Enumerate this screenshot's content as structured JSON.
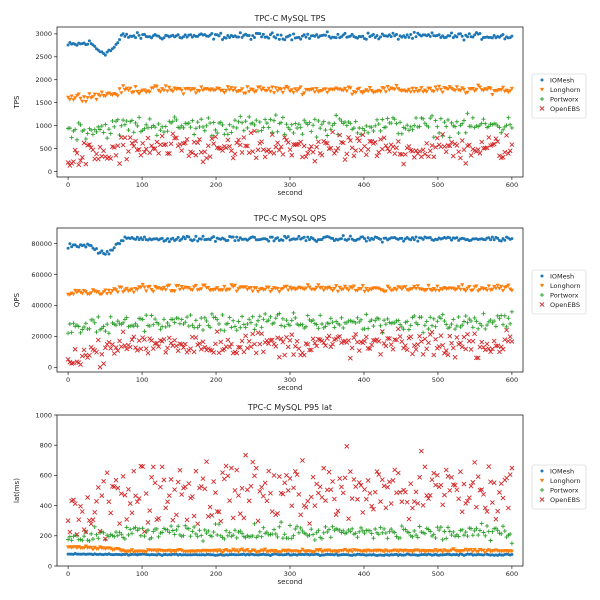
{
  "chart_data": [
    {
      "type": "scatter",
      "title": "TPC-C MySQL TPS",
      "xlabel": "second",
      "ylabel": "TPS",
      "xlim": [
        -15,
        615
      ],
      "ylim": [
        -120,
        3150
      ],
      "xticks": [
        0,
        100,
        200,
        300,
        400,
        500,
        600
      ],
      "yticks": [
        0,
        500,
        1000,
        1500,
        2000,
        2500,
        3000
      ],
      "grid": false,
      "legend_position": "right",
      "series": [
        {
          "name": "IOMesh",
          "marker": "dot",
          "color": "#1f77b4",
          "start": 2750,
          "steady": 2950,
          "noise": 60,
          "dip": 2600
        },
        {
          "name": "Longhorn",
          "marker": "tri",
          "color": "#ff7f0e",
          "start": 1600,
          "steady": 1780,
          "noise": 70
        },
        {
          "name": "Portworx",
          "marker": "plus",
          "color": "#2ca02c",
          "start": 900,
          "steady": 1000,
          "noise": 180
        },
        {
          "name": "OpenEBS",
          "marker": "x",
          "color": "#d62728",
          "start": 300,
          "steady": 500,
          "noise": 260
        }
      ]
    },
    {
      "type": "scatter",
      "title": "TPC-C MySQL QPS",
      "xlabel": "second",
      "ylabel": "QPS",
      "xlim": [
        -15,
        615
      ],
      "ylim": [
        -3000,
        90000
      ],
      "xticks": [
        0,
        100,
        200,
        300,
        400,
        500,
        600
      ],
      "yticks": [
        0,
        20000,
        40000,
        60000,
        80000
      ],
      "grid": false,
      "legend_position": "right",
      "series": [
        {
          "name": "IOMesh",
          "marker": "dot",
          "color": "#1f77b4",
          "start": 78000,
          "steady": 83000,
          "noise": 1400,
          "dip": 74000
        },
        {
          "name": "Longhorn",
          "marker": "tri",
          "color": "#ff7f0e",
          "start": 48000,
          "steady": 51000,
          "noise": 1800
        },
        {
          "name": "Portworx",
          "marker": "plus",
          "color": "#2ca02c",
          "start": 25000,
          "steady": 29000,
          "noise": 5000
        },
        {
          "name": "OpenEBS",
          "marker": "x",
          "color": "#d62728",
          "start": 8000,
          "steady": 15000,
          "noise": 7000
        }
      ]
    },
    {
      "type": "scatter",
      "title": "TPC-C MySQL P95 lat",
      "xlabel": "second",
      "ylabel": "lat(ms)",
      "xlim": [
        -15,
        615
      ],
      "ylim": [
        0,
        1000
      ],
      "xticks": [
        0,
        100,
        200,
        300,
        400,
        500,
        600
      ],
      "yticks": [
        0,
        200,
        400,
        600,
        800,
        1000
      ],
      "grid": false,
      "legend_position": "right",
      "series": [
        {
          "name": "IOMesh",
          "marker": "dot",
          "color": "#1f77b4",
          "start": 80,
          "steady": 75,
          "noise": 4
        },
        {
          "name": "Longhorn",
          "marker": "tri",
          "color": "#ff7f0e",
          "start": 130,
          "steady": 100,
          "noise": 8
        },
        {
          "name": "Portworx",
          "marker": "plus",
          "color": "#2ca02c",
          "start": 180,
          "steady": 220,
          "noise": 45
        },
        {
          "name": "OpenEBS",
          "marker": "x",
          "color": "#d62728",
          "start": 350,
          "steady": 500,
          "noise": 190
        }
      ]
    }
  ]
}
